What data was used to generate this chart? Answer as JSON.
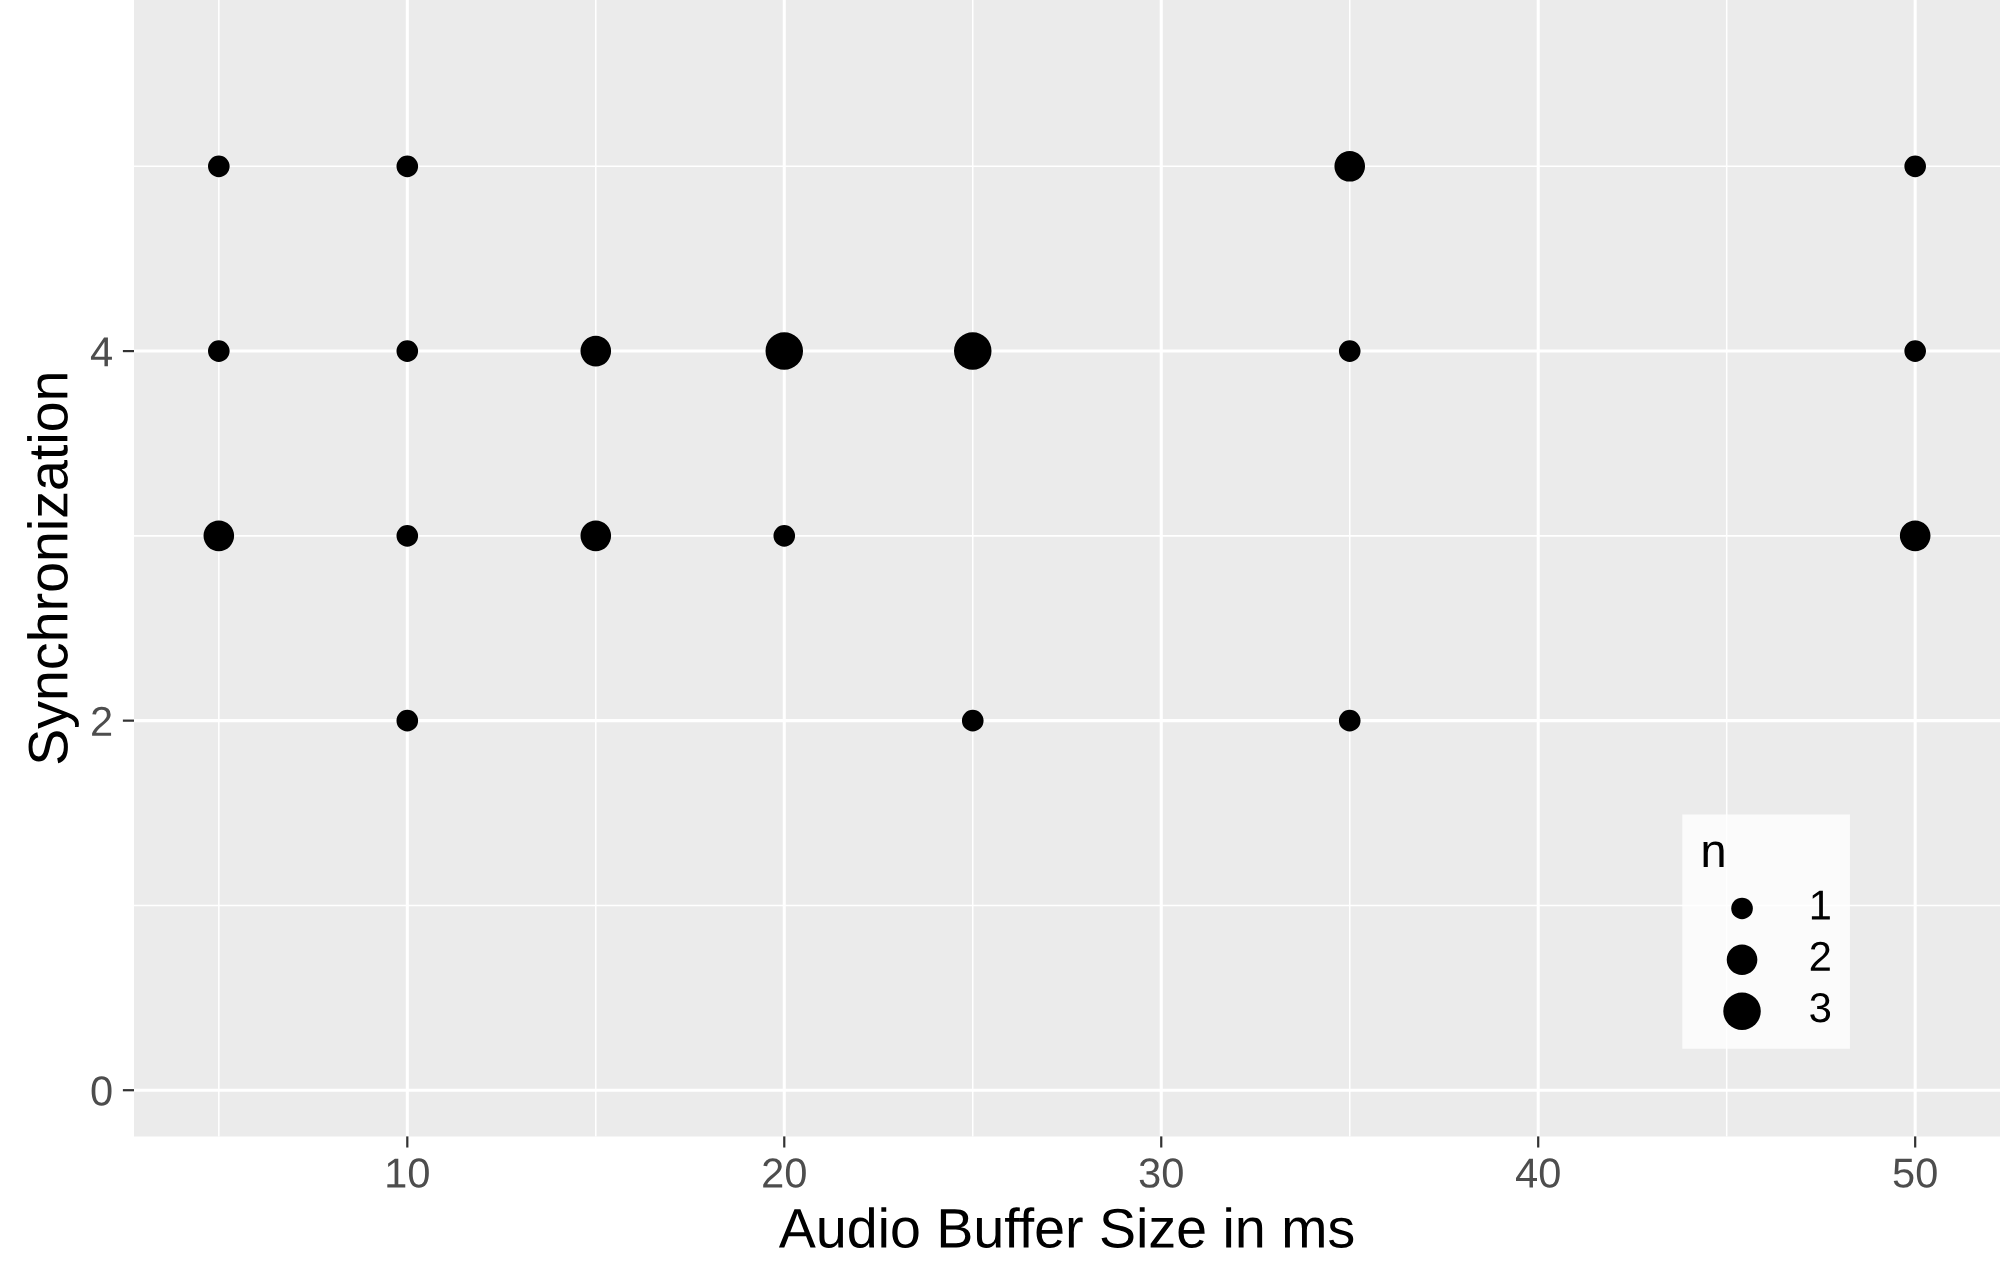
{
  "chart_data": {
    "type": "bubble",
    "xlabel": "Audio Buffer Size in ms",
    "ylabel": "Synchronization",
    "legend_title": "n",
    "series": [
      {
        "color": "#000000",
        "x": [
          5,
          5,
          5,
          10,
          10,
          10,
          10,
          15,
          15,
          20,
          20,
          25,
          25,
          35,
          35,
          35,
          50,
          50,
          50
        ],
        "values": [
          5,
          4,
          3,
          5,
          4,
          3,
          2,
          4,
          3,
          4,
          3,
          4,
          2,
          5,
          4,
          2,
          5,
          4,
          3
        ],
        "sizes": [
          1,
          1,
          2,
          1,
          1,
          1,
          1,
          2,
          2,
          3,
          1,
          3,
          1,
          2,
          1,
          1,
          1,
          1,
          2
        ]
      }
    ],
    "size_legend": [
      1,
      2,
      3
    ],
    "xlim": [
      2.75,
      52.25
    ],
    "xticks": [
      10,
      20,
      30,
      40,
      50
    ],
    "ylim": [
      -0.25,
      5.9
    ],
    "yticks": [
      0,
      2,
      4
    ],
    "grid": true
  }
}
